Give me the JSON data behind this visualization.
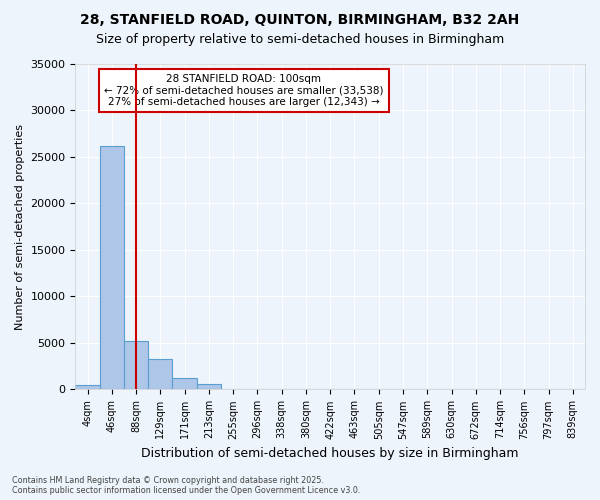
{
  "title1": "28, STANFIELD ROAD, QUINTON, BIRMINGHAM, B32 2AH",
  "title2": "Size of property relative to semi-detached houses in Birmingham",
  "xlabel": "Distribution of semi-detached houses by size in Birmingham",
  "ylabel": "Number of semi-detached properties",
  "bin_labels": [
    "4sqm",
    "46sqm",
    "88sqm",
    "129sqm",
    "171sqm",
    "213sqm",
    "255sqm",
    "296sqm",
    "338sqm",
    "380sqm",
    "422sqm",
    "463sqm",
    "505sqm",
    "547sqm",
    "589sqm",
    "630sqm",
    "672sqm",
    "714sqm",
    "756sqm",
    "797sqm",
    "839sqm"
  ],
  "bin_values": [
    500,
    26200,
    5200,
    3300,
    1200,
    600,
    0,
    0,
    0,
    0,
    0,
    0,
    0,
    0,
    0,
    0,
    0,
    0,
    0,
    0,
    0
  ],
  "bar_color": "#aec6e8",
  "bar_edge_color": "#5a9fd4",
  "red_line_x": 2.0,
  "annotation_title": "28 STANFIELD ROAD: 100sqm",
  "annotation_line1": "← 72% of semi-detached houses are smaller (33,538)",
  "annotation_line2": "27% of semi-detached houses are larger (12,343) →",
  "ylim": [
    0,
    35000
  ],
  "yticks": [
    0,
    5000,
    10000,
    15000,
    20000,
    25000,
    30000,
    35000
  ],
  "footer1": "Contains HM Land Registry data © Crown copyright and database right 2025.",
  "footer2": "Contains public sector information licensed under the Open Government Licence v3.0.",
  "background_color": "#eef4fb",
  "grid_color": "#ffffff",
  "red_line_color": "#cc0000",
  "annotation_box_color": "#ffffff",
  "annotation_box_edge": "#cc0000"
}
